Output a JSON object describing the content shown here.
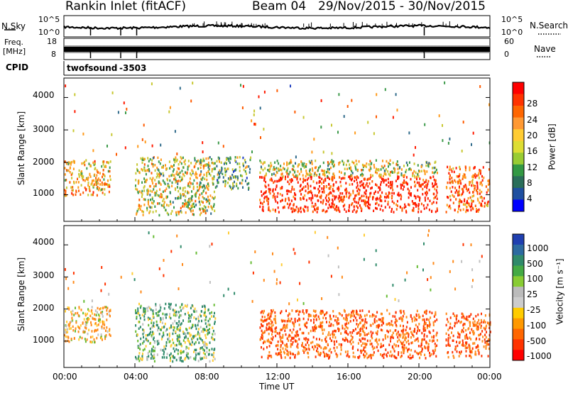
{
  "header": {
    "station": "Rankin Inlet (fitACF)",
    "beam": "Beam 04",
    "date_range": "29/Nov/2015 - 30/Nov/2015"
  },
  "panels": {
    "nsky": {
      "label": "N.Sky",
      "right_label": "N.Search",
      "ticks_left": [
        "10^5",
        "10^0"
      ],
      "ticks_right": [
        "10^5",
        "10^0"
      ]
    },
    "freq": {
      "label_line1": "Freq.",
      "label_line2": "[MHz]",
      "right_label": "Nave",
      "ticks_left": [
        "18",
        "8"
      ],
      "ticks_right": [
        "60",
        "0"
      ]
    },
    "cpid": {
      "label": "CPID",
      "program": "twofsound",
      "id": "-3503"
    },
    "power": {
      "ylabel": "Slant Range [km]",
      "colorbar_label": "Power [dB]",
      "colorbar_ticks": [
        "28",
        "24",
        "20",
        "16",
        "12",
        "8",
        "4"
      ],
      "colorbar_colors": [
        "#ff0000",
        "#ff3300",
        "#ff6600",
        "#ff9933",
        "#ffcc33",
        "#dddd33",
        "#99cc33",
        "#339944",
        "#2a6e5a",
        "#1f4fa0",
        "#0000ff"
      ]
    },
    "velocity": {
      "ylabel": "Slant Range [km]",
      "colorbar_label": "Velocity [m s⁻¹]",
      "colorbar_ticks": [
        "1000",
        "500",
        "100",
        "25",
        "-25",
        "-100",
        "-500",
        "-1000"
      ],
      "colorbar_colors": [
        "#1f3fb0",
        "#2c6aa0",
        "#2f8a6a",
        "#44aa44",
        "#88cc33",
        "#bbbbbb",
        "#cccccc",
        "#ffcc00",
        "#ff9900",
        "#ff6600",
        "#ff3300",
        "#ff0000"
      ]
    }
  },
  "x_axis": {
    "label": "Time UT",
    "ticks": [
      "00:00",
      "04:00",
      "08:00",
      "12:00",
      "16:00",
      "20:00",
      "00:00"
    ]
  },
  "chart_data": {
    "type": "heatmap",
    "x_range_hours": [
      0,
      24
    ],
    "y_ticks_km": [
      1000,
      2000,
      3000,
      4000
    ],
    "y_range_km": [
      180,
      4600
    ],
    "power_regions": [
      {
        "t0": 0.0,
        "t1": 2.6,
        "r0": 1000,
        "r1": 2100,
        "level": 20
      },
      {
        "t0": 4.0,
        "t1": 8.5,
        "r0": 400,
        "r1": 2200,
        "level": 16
      },
      {
        "t0": 8.5,
        "t1": 10.5,
        "r0": 1200,
        "r1": 2200,
        "level": 12
      },
      {
        "t0": 11.0,
        "t1": 21.0,
        "r0": 500,
        "r1": 1600,
        "level": 28
      },
      {
        "t0": 11.0,
        "t1": 21.0,
        "r0": 1600,
        "r1": 2100,
        "level": 16
      },
      {
        "t0": 21.5,
        "t1": 24.0,
        "r0": 500,
        "r1": 1900,
        "level": 24
      }
    ],
    "velocity_regions": [
      {
        "t0": 0.0,
        "t1": 2.6,
        "r0": 1000,
        "r1": 2100,
        "level": -100
      },
      {
        "t0": 4.0,
        "t1": 8.5,
        "r0": 400,
        "r1": 2200,
        "level": 100
      },
      {
        "t0": 11.0,
        "t1": 21.0,
        "r0": 500,
        "r1": 2000,
        "level": -500
      },
      {
        "t0": 21.5,
        "t1": 24.0,
        "r0": 500,
        "r1": 1900,
        "level": -500
      }
    ]
  }
}
